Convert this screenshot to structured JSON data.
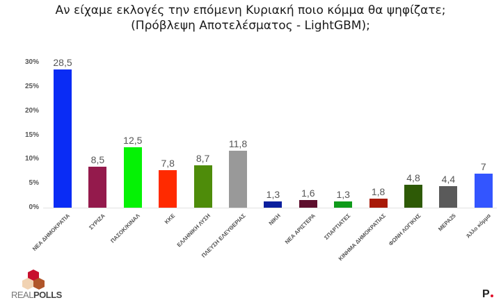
{
  "header": {
    "title_line1": "Αν είχαμε εκλογές την επόμενη Κυριακή ποιο κόμμα θα ψηφίζατε;",
    "title_line2": "(Πρόβλεψη Αποτελέσματος - LightGBM);"
  },
  "logos": {
    "left_brand_a": "REAL",
    "left_brand_b": "POLLS",
    "right_brand": "P"
  },
  "chart_data": {
    "type": "bar",
    "title": "Αν είχαμε εκλογές την επόμενη Κυριακή ποιο κόμμα θα ψηφίζατε; (Πρόβλεψη Αποτελέσματος - LightGBM);",
    "xlabel": "",
    "ylabel": "",
    "ylim": [
      0,
      30
    ],
    "yticks": [
      "0%",
      "5%",
      "10%",
      "15%",
      "20%",
      "25%",
      "30%"
    ],
    "grid": false,
    "legend": null,
    "categories": [
      "ΝΕΑ ΔΗΜΟΚΡΑΤΙΑ",
      "ΣΥΡΙΖΑ",
      "ΠΑΣΟΚ/ΚΙΝΑΛ",
      "ΚΚΕ",
      "ΕΛΛΗΝΙΚΗ ΛΥΣΗ",
      "ΠΛΕΥΣΗ ΕΛΕΥΘΕΡΙΑΣ",
      "ΝΙΚΗ",
      "ΝΕΑ ΑΡΙΣΤΕΡΑ",
      "ΣΠΑΡΤΙΑΤΕΣ",
      "ΚΙΝΗΜΑ ΔΗΜΟΚΡΑΤΙΑΣ",
      "ΦΩΝΗ ΛΟΓΙΚΗΣ",
      "ΜΕΡΑ25",
      "Άλλο κόμμα"
    ],
    "values": [
      28.5,
      8.5,
      12.5,
      7.8,
      8.7,
      11.8,
      1.3,
      1.6,
      1.3,
      1.8,
      4.8,
      4.4,
      7
    ],
    "value_labels": [
      "28,5",
      "8,5",
      "12,5",
      "7,8",
      "8,7",
      "11,8",
      "1,3",
      "1,6",
      "1,3",
      "1,8",
      "4,8",
      "4,4",
      "7"
    ],
    "colors": [
      "#0a2cf5",
      "#941a4c",
      "#05f205",
      "#ff2a00",
      "#4e8c0a",
      "#999999",
      "#0a1f9e",
      "#5e0f2e",
      "#0f9a1a",
      "#a81a08",
      "#2e5a06",
      "#5a5a5a",
      "#3355ff"
    ]
  }
}
